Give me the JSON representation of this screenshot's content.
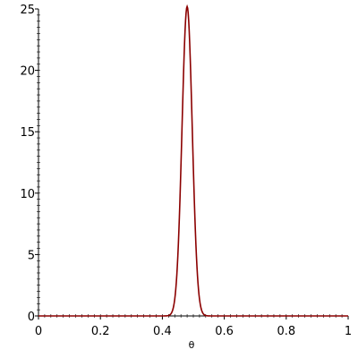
{
  "chart_data": {
    "type": "line",
    "title": "",
    "xlabel": "θ",
    "ylabel": "",
    "xlim": [
      0,
      1
    ],
    "ylim": [
      0,
      25
    ],
    "x_ticks": [
      "0",
      "0.2",
      "0.4",
      "0.6",
      "0.8",
      "1"
    ],
    "y_ticks": [
      "0",
      "5",
      "10",
      "15",
      "20",
      "25"
    ],
    "grid": false,
    "legend": "none",
    "series": [
      {
        "color": "#8b0000",
        "x": [
          0,
          0.4,
          0.42,
          0.43,
          0.44,
          0.45,
          0.46,
          0.47,
          0.48,
          0.49,
          0.5,
          0.51,
          0.52,
          0.53,
          0.54,
          1
        ],
        "y": [
          0,
          0,
          0.1,
          0.6,
          2.0,
          5.8,
          12.0,
          21.0,
          25.2,
          21.0,
          12.0,
          5.8,
          2.0,
          0.6,
          0.1,
          0
        ]
      }
    ]
  }
}
